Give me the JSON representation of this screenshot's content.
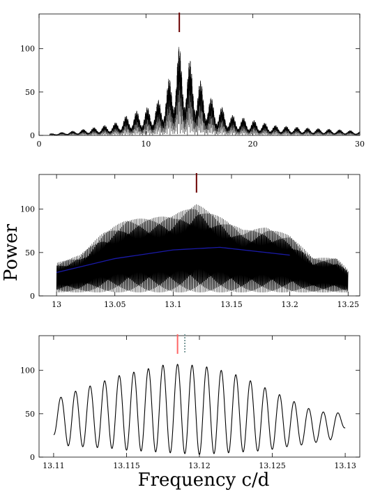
{
  "ylabel": "Power",
  "xlabel": "Frequency c/d",
  "chart_data": [
    {
      "type": "line",
      "xlim": [
        0,
        30
      ],
      "ylim": [
        0,
        140
      ],
      "xticks": [
        0,
        10,
        20,
        30
      ],
      "yticks": [
        0,
        50,
        100
      ],
      "xtick_labels": [
        "0",
        "10",
        "20",
        "30"
      ],
      "ytick_labels": [
        "0",
        "50",
        "100"
      ],
      "envelope": {
        "x": [
          1.0,
          3.0,
          5.0,
          7.0,
          8.0,
          9.0,
          10.0,
          11.0,
          12.0,
          12.5,
          13.0,
          13.5,
          14.0,
          14.5,
          15.0,
          15.5,
          16.0,
          17.0,
          18.0,
          20.0,
          22.0,
          25.0,
          28.0,
          30.0
        ],
        "y": [
          2,
          5,
          9,
          14,
          22,
          28,
          32,
          38,
          60,
          82,
          105,
          95,
          90,
          80,
          65,
          58,
          45,
          34,
          24,
          18,
          12,
          9,
          7,
          5
        ]
      },
      "marker_lines": [
        {
          "x": 13.12,
          "color": "#6b0000"
        }
      ]
    },
    {
      "type": "line",
      "xlim": [
        12.985,
        13.26
      ],
      "ylim": [
        0,
        140
      ],
      "xticks": [
        13,
        13.05,
        13.1,
        13.15,
        13.2,
        13.25
      ],
      "yticks": [
        0,
        50,
        100
      ],
      "xtick_labels": [
        "13",
        "13.05",
        "13.1",
        "13.15",
        "13.2",
        "13.25"
      ],
      "ytick_labels": [
        "0",
        "50",
        "100"
      ],
      "lobes": {
        "x": [
          13.0,
          13.02,
          13.04,
          13.06,
          13.08,
          13.1,
          13.12,
          13.14,
          13.16,
          13.18,
          13.2,
          13.22,
          13.24,
          13.25
        ],
        "y": [
          38,
          47,
          73,
          88,
          90,
          93,
          106,
          91,
          76,
          79,
          70,
          44,
          44,
          30
        ]
      },
      "trend": {
        "x": [
          13.0,
          13.05,
          13.1,
          13.14,
          13.2
        ],
        "y": [
          27,
          43,
          53,
          56,
          47
        ],
        "color": "#1a1aa8"
      },
      "marker_lines": [
        {
          "x": 13.12,
          "color": "#6b0000"
        }
      ]
    },
    {
      "type": "line",
      "xlim": [
        13.109,
        13.131
      ],
      "ylim": [
        0,
        140
      ],
      "xticks": [
        13.11,
        13.115,
        13.12,
        13.125,
        13.13
      ],
      "yticks": [
        0,
        50,
        100
      ],
      "xtick_labels": [
        "13.11",
        "13.115",
        "13.12",
        "13.125",
        "13.13"
      ],
      "ytick_labels": [
        "0",
        "50",
        "100"
      ],
      "peaks": {
        "x": [
          13.1105,
          13.1115,
          13.1125,
          13.1135,
          13.1145,
          13.1155,
          13.1165,
          13.1175,
          13.1185,
          13.1195,
          13.1205,
          13.1215,
          13.1225,
          13.1235,
          13.1245,
          13.1255,
          13.1265,
          13.1275,
          13.1285,
          13.1295
        ],
        "y": [
          69,
          76,
          82,
          88,
          94,
          98,
          102,
          106,
          107,
          106,
          104,
          100,
          95,
          88,
          80,
          72,
          64,
          56,
          52,
          51
        ]
      },
      "troughs": {
        "x": [
          13.11,
          13.111,
          13.112,
          13.113,
          13.114,
          13.115,
          13.116,
          13.117,
          13.118,
          13.119,
          13.12,
          13.121,
          13.122,
          13.123,
          13.124,
          13.125,
          13.126,
          13.127,
          13.128,
          13.129,
          13.13
        ],
        "y": [
          26,
          13,
          12,
          11,
          10,
          8,
          7,
          6,
          5,
          4,
          3,
          4,
          5,
          6,
          7,
          9,
          12,
          14,
          17,
          20,
          34
        ]
      },
      "marker_lines": [
        {
          "x": 13.1185,
          "color": "#ff6666"
        },
        {
          "x": 13.119,
          "color": "#7a9a9a"
        }
      ]
    }
  ]
}
